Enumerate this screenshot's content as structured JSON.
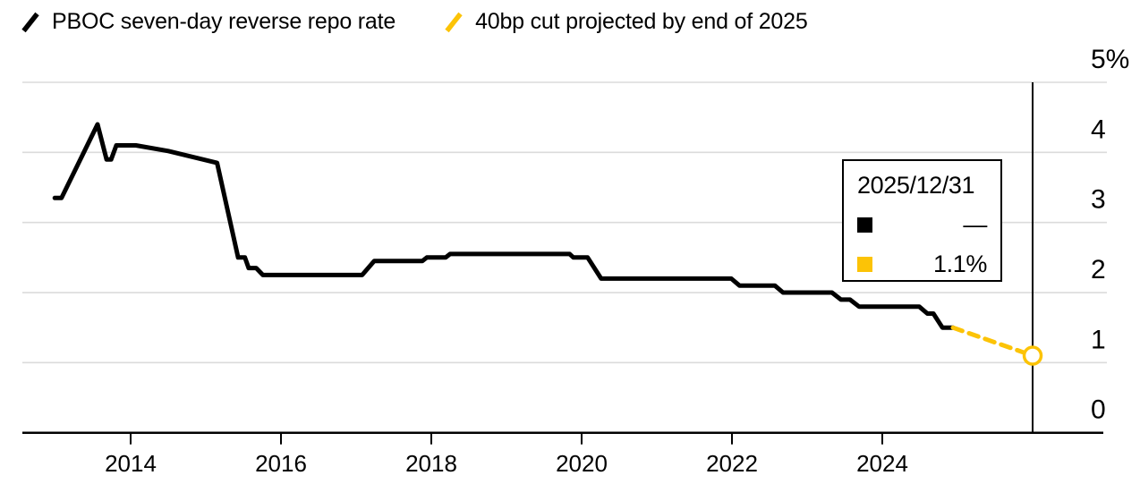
{
  "legend": {
    "series1": {
      "label": "PBOC seven-day reverse repo rate",
      "color": "#000000"
    },
    "series2": {
      "label": "40bp cut projected by end of 2025",
      "color": "#FCC306"
    }
  },
  "tooltip": {
    "date": "2025/12/31",
    "rows": [
      {
        "series": "PBOC seven-day reverse repo rate",
        "swatch_color": "#000000",
        "value": "—"
      },
      {
        "series": "40bp cut projected by end of 2025",
        "swatch_color": "#FCC306",
        "value": "1.1%"
      }
    ]
  },
  "axes": {
    "y_ticks": [
      {
        "value": 5,
        "label": "5%"
      },
      {
        "value": 4,
        "label": "4"
      },
      {
        "value": 3,
        "label": "3"
      },
      {
        "value": 2,
        "label": "2"
      },
      {
        "value": 1,
        "label": "1"
      },
      {
        "value": 0,
        "label": "0"
      }
    ],
    "x_ticks": [
      {
        "value": 2014,
        "label": "2014"
      },
      {
        "value": 2016,
        "label": "2016"
      },
      {
        "value": 2018,
        "label": "2018"
      },
      {
        "value": 2020,
        "label": "2020"
      },
      {
        "value": 2022,
        "label": "2022"
      },
      {
        "value": 2024,
        "label": "2024"
      }
    ]
  },
  "chart_data": {
    "type": "line",
    "title": "",
    "xlabel": "",
    "ylabel": "",
    "y_unit": "%",
    "xlim": [
      2012.6,
      2027.0
    ],
    "ylim": [
      0,
      5
    ],
    "grid": "horizontal",
    "legend_position": "top-left",
    "vline_x": 2026.0,
    "vline_meaning": "end of 2025",
    "series": [
      {
        "name": "PBOC seven-day reverse repo rate",
        "color": "#000000",
        "style": "solid",
        "points": [
          [
            2012.99,
            3.35
          ],
          [
            2013.08,
            3.35
          ],
          [
            2013.56,
            4.4
          ],
          [
            2013.68,
            3.9
          ],
          [
            2013.74,
            3.9
          ],
          [
            2013.81,
            4.1
          ],
          [
            2014.07,
            4.1
          ],
          [
            2014.5,
            4.02
          ],
          [
            2015.15,
            3.85
          ],
          [
            2015.43,
            2.5
          ],
          [
            2015.52,
            2.5
          ],
          [
            2015.57,
            2.35
          ],
          [
            2015.67,
            2.35
          ],
          [
            2015.76,
            2.25
          ],
          [
            2017.08,
            2.25
          ],
          [
            2017.24,
            2.45
          ],
          [
            2017.88,
            2.45
          ],
          [
            2017.94,
            2.5
          ],
          [
            2018.19,
            2.5
          ],
          [
            2018.25,
            2.55
          ],
          [
            2019.84,
            2.55
          ],
          [
            2019.89,
            2.5
          ],
          [
            2020.08,
            2.5
          ],
          [
            2020.26,
            2.2
          ],
          [
            2021.99,
            2.2
          ],
          [
            2022.1,
            2.1
          ],
          [
            2022.57,
            2.1
          ],
          [
            2022.68,
            2.0
          ],
          [
            2023.33,
            2.0
          ],
          [
            2023.45,
            1.9
          ],
          [
            2023.57,
            1.9
          ],
          [
            2023.69,
            1.8
          ],
          [
            2024.49,
            1.8
          ],
          [
            2024.6,
            1.7
          ],
          [
            2024.68,
            1.7
          ],
          [
            2024.8,
            1.5
          ],
          [
            2024.94,
            1.5
          ]
        ]
      },
      {
        "name": "40bp cut projected by end of 2025",
        "color": "#FCC306",
        "style": "dashed",
        "end_marker": "open-circle",
        "points": [
          [
            2024.94,
            1.5
          ],
          [
            2026.0,
            1.1
          ]
        ]
      }
    ]
  }
}
